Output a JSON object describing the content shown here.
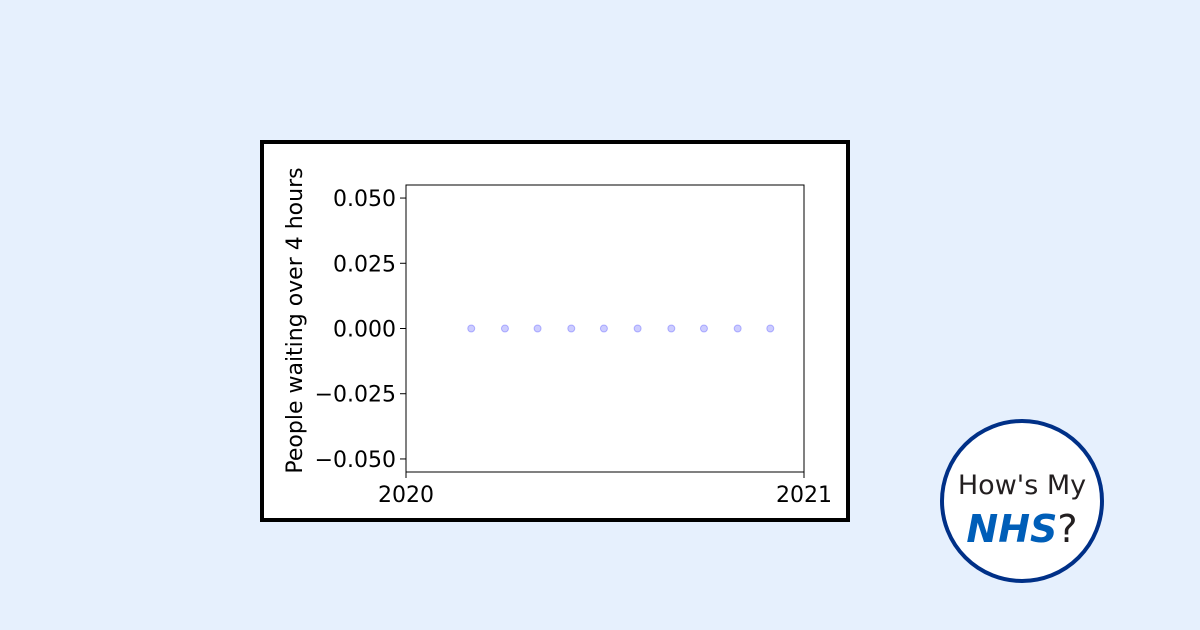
{
  "chart_data": {
    "type": "scatter",
    "title": "",
    "xlabel": "",
    "ylabel": "People waiting over 4 hours",
    "x_ticks": [
      "2020",
      "2021"
    ],
    "y_ticks": [
      0.05,
      0.025,
      0.0,
      -0.025,
      -0.05
    ],
    "y_tick_labels": [
      "0.050",
      "0.025",
      "0.000",
      "−0.025",
      "−0.050"
    ],
    "xlim": [
      "2020-01-01",
      "2021-01-01"
    ],
    "ylim": [
      -0.055,
      0.055
    ],
    "grid": false,
    "point_color": "#0000ff",
    "points": [
      {
        "x": "2020-03-01",
        "y": 0
      },
      {
        "x": "2020-04-01",
        "y": 0
      },
      {
        "x": "2020-05-01",
        "y": 0
      },
      {
        "x": "2020-06-01",
        "y": 0
      },
      {
        "x": "2020-07-01",
        "y": 0
      },
      {
        "x": "2020-08-01",
        "y": 0
      },
      {
        "x": "2020-09-01",
        "y": 0
      },
      {
        "x": "2020-10-01",
        "y": 0
      },
      {
        "x": "2020-11-01",
        "y": 0
      },
      {
        "x": "2020-12-01",
        "y": 0
      }
    ]
  },
  "logo": {
    "line1": "How's My",
    "nhs": "NHS",
    "suffix": "?"
  },
  "colors": {
    "background": "#e6f0fd",
    "logo_border": "#003087",
    "nhs_blue": "#005eb8"
  }
}
